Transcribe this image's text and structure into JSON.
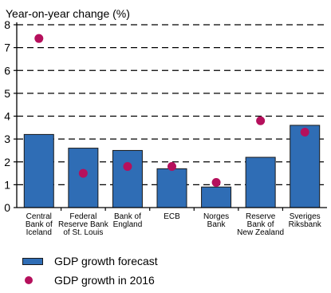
{
  "chart_data": {
    "type": "bar",
    "ylabel": "Year-on-year change (%)",
    "ylim": [
      0,
      8
    ],
    "yticks": [
      0,
      1,
      2,
      3,
      4,
      5,
      6,
      7,
      8
    ],
    "grid": "dashed horizontal",
    "categories": [
      [
        "Central",
        "Bank of",
        "Iceland"
      ],
      [
        "Federal",
        "Reserve Bank",
        "of St. Louis"
      ],
      [
        "Bank of",
        "England"
      ],
      [
        "ECB"
      ],
      [
        "Norges",
        "Bank"
      ],
      [
        "Reserve",
        "Bank of",
        "New Zealand"
      ],
      [
        "Sveriges",
        "Riksbank"
      ]
    ],
    "series": [
      {
        "name": "GDP growth forecast",
        "kind": "bar",
        "color": "#2f6db5",
        "values": [
          3.2,
          2.6,
          2.5,
          1.7,
          0.9,
          2.2,
          3.6
        ]
      },
      {
        "name": "GDP growth in 2016",
        "kind": "point",
        "color": "#b5105c",
        "values": [
          7.4,
          1.5,
          1.8,
          1.8,
          1.1,
          3.8,
          3.3
        ]
      }
    ],
    "legend_position": "bottom-left"
  }
}
